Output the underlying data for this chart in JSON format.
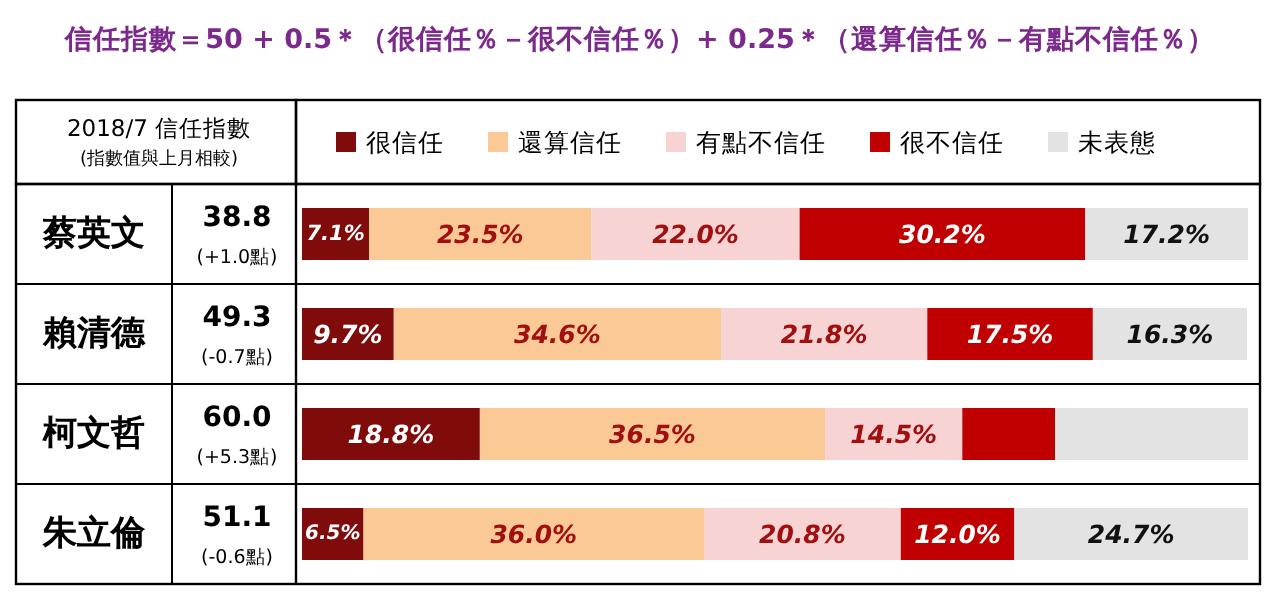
{
  "chart_data": {
    "type": "bar",
    "orientation": "horizontal",
    "stacked": true,
    "title": "信任指數＝50 + 0.5＊（很信任％－很不信任％）+ 0.25＊（還算信任％－有點不信任％）",
    "categories": [
      "蔡英文",
      "賴清德",
      "柯文哲",
      "朱立倫"
    ],
    "xlim": [
      0,
      100
    ],
    "legend": "top",
    "series": [
      {
        "name": "很信任",
        "color": "#7f0b0b",
        "values": [
          7.1,
          9.7,
          18.8,
          6.5
        ],
        "value_labels": [
          "7.1%",
          "9.7%",
          "18.8%",
          "6.5%"
        ]
      },
      {
        "name": "還算信任",
        "color": "#fbc995",
        "values": [
          23.5,
          34.6,
          36.5,
          36.0
        ],
        "value_labels": [
          "23.5%",
          "34.6%",
          "36.5%",
          "36.0%"
        ]
      },
      {
        "name": "有點不信任",
        "color": "#f7d3d3",
        "values": [
          22.0,
          21.8,
          14.5,
          20.8
        ],
        "value_labels": [
          "22.0%",
          "21.8%",
          "14.5%",
          "20.8%"
        ]
      },
      {
        "name": "很不信任",
        "color": "#c00000",
        "values": [
          30.2,
          17.5,
          9.8,
          12.0
        ],
        "value_labels": [
          "30.2%",
          "17.5%",
          null,
          "12.0%"
        ]
      },
      {
        "name": "未表態",
        "color": "#e3e3e3",
        "values": [
          17.2,
          16.3,
          20.4,
          24.7
        ],
        "value_labels": [
          "17.2%",
          "16.3%",
          null,
          "24.7%"
        ]
      }
    ],
    "annotations": [
      "2018/7 信任指數",
      "(指數值與上月相較)",
      "38.8",
      "(+1.0點)",
      "49.3",
      "(-0.7點)",
      "60.0",
      "(+5.3點)",
      "51.1",
      "(-0.6點)"
    ]
  }
}
